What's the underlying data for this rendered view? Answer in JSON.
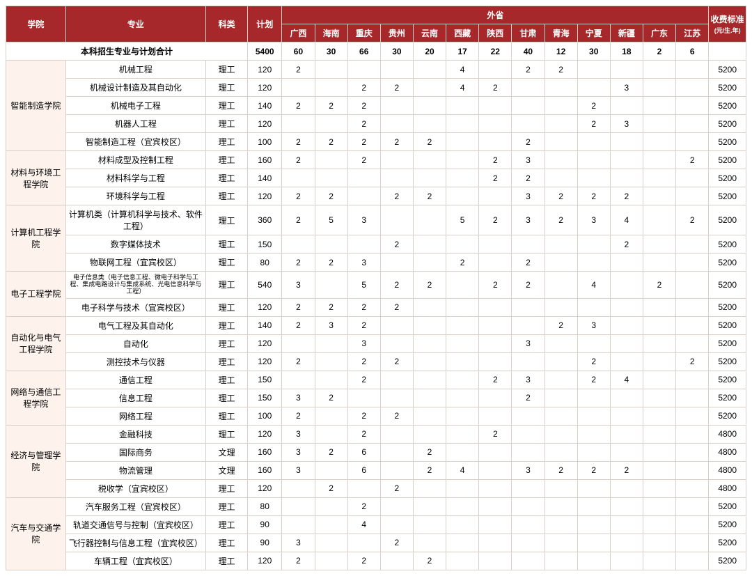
{
  "headers": {
    "college": "学院",
    "major": "专业",
    "category": "科类",
    "plan": "计划",
    "out_province": "外省",
    "fee": "收费标准",
    "fee_sub": "(元/生.年)",
    "provinces": [
      "广西",
      "海南",
      "重庆",
      "贵州",
      "云南",
      "西藏",
      "陕西",
      "甘肃",
      "青海",
      "宁夏",
      "新疆",
      "广东",
      "江苏"
    ]
  },
  "total_row": {
    "label": "本科招生专业与计划合计",
    "plan": "5400",
    "vals": [
      "60",
      "30",
      "66",
      "30",
      "20",
      "17",
      "22",
      "40",
      "12",
      "30",
      "18",
      "2",
      "6"
    ],
    "fee": ""
  },
  "colleges": [
    {
      "name": "智能制造学院",
      "rows": [
        {
          "major": "机械工程",
          "cat": "理工",
          "plan": "120",
          "v": [
            "2",
            "",
            "",
            "",
            "",
            "4",
            "",
            "2",
            "2",
            "",
            "",
            "",
            ""
          ],
          "fee": "5200"
        },
        {
          "major": "机械设计制造及其自动化",
          "cat": "理工",
          "plan": "120",
          "v": [
            "",
            "",
            "2",
            "2",
            "",
            "4",
            "2",
            "",
            "",
            "",
            "3",
            "",
            ""
          ],
          "fee": "5200"
        },
        {
          "major": "机械电子工程",
          "cat": "理工",
          "plan": "140",
          "v": [
            "2",
            "2",
            "2",
            "",
            "",
            "",
            "",
            "",
            "",
            "2",
            "",
            "",
            ""
          ],
          "fee": "5200"
        },
        {
          "major": "机器人工程",
          "cat": "理工",
          "plan": "120",
          "v": [
            "",
            "",
            "2",
            "",
            "",
            "",
            "",
            "",
            "",
            "2",
            "3",
            "",
            ""
          ],
          "fee": "5200"
        },
        {
          "major": "智能制造工程（宜宾校区）",
          "cat": "理工",
          "plan": "100",
          "v": [
            "2",
            "2",
            "2",
            "2",
            "2",
            "",
            "",
            "2",
            "",
            "",
            "",
            "",
            ""
          ],
          "fee": "5200"
        }
      ]
    },
    {
      "name": "材料与环境工程学院",
      "rows": [
        {
          "major": "材料成型及控制工程",
          "cat": "理工",
          "plan": "160",
          "v": [
            "2",
            "",
            "2",
            "",
            "",
            "",
            "2",
            "3",
            "",
            "",
            "",
            "",
            "2"
          ],
          "fee": "5200"
        },
        {
          "major": "材料科学与工程",
          "cat": "理工",
          "plan": "140",
          "v": [
            "",
            "",
            "",
            "",
            "",
            "",
            "2",
            "2",
            "",
            "",
            "",
            "",
            ""
          ],
          "fee": "5200"
        },
        {
          "major": "环境科学与工程",
          "cat": "理工",
          "plan": "120",
          "v": [
            "2",
            "2",
            "",
            "2",
            "2",
            "",
            "",
            "3",
            "2",
            "2",
            "2",
            "",
            ""
          ],
          "fee": "5200"
        }
      ]
    },
    {
      "name": "计算机工程学院",
      "rows": [
        {
          "major": "计算机类（计算机科学与技术、软件工程）",
          "cat": "理工",
          "plan": "360",
          "v": [
            "2",
            "5",
            "3",
            "",
            "",
            "5",
            "2",
            "3",
            "2",
            "3",
            "4",
            "",
            "2"
          ],
          "fee": "5200"
        },
        {
          "major": "数字媒体技术",
          "cat": "理工",
          "plan": "150",
          "v": [
            "",
            "",
            "",
            "2",
            "",
            "",
            "",
            "",
            "",
            "",
            "2",
            "",
            ""
          ],
          "fee": "5200"
        },
        {
          "major": "物联网工程（宜宾校区）",
          "cat": "理工",
          "plan": "80",
          "v": [
            "2",
            "2",
            "3",
            "",
            "",
            "2",
            "",
            "2",
            "",
            "",
            "",
            "",
            ""
          ],
          "fee": "5200"
        }
      ]
    },
    {
      "name": "电子工程学院",
      "rows": [
        {
          "major": "电子信息类（电子信息工程、微电子科学与工程、集成电路设计与集成系统、光电信息科学与工程）",
          "small": true,
          "cat": "理工",
          "plan": "540",
          "v": [
            "3",
            "",
            "5",
            "2",
            "2",
            "",
            "2",
            "2",
            "",
            "4",
            "",
            "2",
            ""
          ],
          "fee": "5200"
        },
        {
          "major": "电子科学与技术（宜宾校区）",
          "cat": "理工",
          "plan": "120",
          "v": [
            "2",
            "2",
            "2",
            "2",
            "",
            "",
            "",
            "",
            "",
            "",
            "",
            "",
            ""
          ],
          "fee": "5200"
        }
      ]
    },
    {
      "name": "自动化与电气工程学院",
      "rows": [
        {
          "major": "电气工程及其自动化",
          "cat": "理工",
          "plan": "140",
          "v": [
            "2",
            "3",
            "2",
            "",
            "",
            "",
            "",
            "",
            "2",
            "3",
            "",
            "",
            ""
          ],
          "fee": "5200"
        },
        {
          "major": "自动化",
          "cat": "理工",
          "plan": "120",
          "v": [
            "",
            "",
            "3",
            "",
            "",
            "",
            "",
            "3",
            "",
            "",
            "",
            "",
            ""
          ],
          "fee": "5200"
        },
        {
          "major": "测控技术与仪器",
          "cat": "理工",
          "plan": "120",
          "v": [
            "2",
            "",
            "2",
            "2",
            "",
            "",
            "",
            "",
            "",
            "2",
            "",
            "",
            "2"
          ],
          "fee": "5200"
        }
      ]
    },
    {
      "name": "网络与通信工程学院",
      "rows": [
        {
          "major": "通信工程",
          "cat": "理工",
          "plan": "150",
          "v": [
            "",
            "",
            "2",
            "",
            "",
            "",
            "2",
            "3",
            "",
            "2",
            "4",
            "",
            ""
          ],
          "fee": "5200"
        },
        {
          "major": "信息工程",
          "cat": "理工",
          "plan": "150",
          "v": [
            "3",
            "2",
            "",
            "",
            "",
            "",
            "",
            "2",
            "",
            "",
            "",
            "",
            ""
          ],
          "fee": "5200"
        },
        {
          "major": "网络工程",
          "cat": "理工",
          "plan": "100",
          "v": [
            "2",
            "",
            "2",
            "2",
            "",
            "",
            "",
            "",
            "",
            "",
            "",
            "",
            ""
          ],
          "fee": "5200"
        }
      ]
    },
    {
      "name": "经济与管理学院",
      "rows": [
        {
          "major": "金融科技",
          "cat": "理工",
          "plan": "120",
          "v": [
            "3",
            "",
            "2",
            "",
            "",
            "",
            "2",
            "",
            "",
            "",
            "",
            "",
            ""
          ],
          "fee": "4800"
        },
        {
          "major": "国际商务",
          "cat": "文理",
          "plan": "160",
          "v": [
            "3",
            "2",
            "6",
            "",
            "2",
            "",
            "",
            "",
            "",
            "",
            "",
            "",
            ""
          ],
          "fee": "4800"
        },
        {
          "major": "物流管理",
          "cat": "文理",
          "plan": "160",
          "v": [
            "3",
            "",
            "6",
            "",
            "2",
            "4",
            "",
            "3",
            "2",
            "2",
            "2",
            "",
            ""
          ],
          "fee": "4800"
        },
        {
          "major": "税收学（宜宾校区）",
          "cat": "理工",
          "plan": "120",
          "v": [
            "",
            "2",
            "",
            "2",
            "",
            "",
            "",
            "",
            "",
            "",
            "",
            "",
            ""
          ],
          "fee": "4800"
        }
      ]
    },
    {
      "name": "汽车与交通学院",
      "rows": [
        {
          "major": "汽车服务工程（宜宾校区）",
          "cat": "理工",
          "plan": "80",
          "v": [
            "",
            "",
            "2",
            "",
            "",
            "",
            "",
            "",
            "",
            "",
            "",
            "",
            ""
          ],
          "fee": "5200"
        },
        {
          "major": "轨道交通信号与控制（宜宾校区）",
          "cat": "理工",
          "plan": "90",
          "v": [
            "",
            "",
            "4",
            "",
            "",
            "",
            "",
            "",
            "",
            "",
            "",
            "",
            ""
          ],
          "fee": "5200"
        },
        {
          "major": "飞行器控制与信息工程（宜宾校区）",
          "cat": "理工",
          "plan": "90",
          "v": [
            "3",
            "",
            "",
            "2",
            "",
            "",
            "",
            "",
            "",
            "",
            "",
            "",
            ""
          ],
          "fee": "5200"
        },
        {
          "major": "车辆工程（宜宾校区）",
          "cat": "理工",
          "plan": "120",
          "v": [
            "2",
            "",
            "2",
            "",
            "2",
            "",
            "",
            "",
            "",
            "",
            "",
            "",
            ""
          ],
          "fee": "5200"
        }
      ]
    }
  ],
  "colors": {
    "header_bg": "#a7282a",
    "header_fg": "#ffffff",
    "row_alt_bg": "#fdf3ec",
    "border": "#d8cfc8"
  }
}
